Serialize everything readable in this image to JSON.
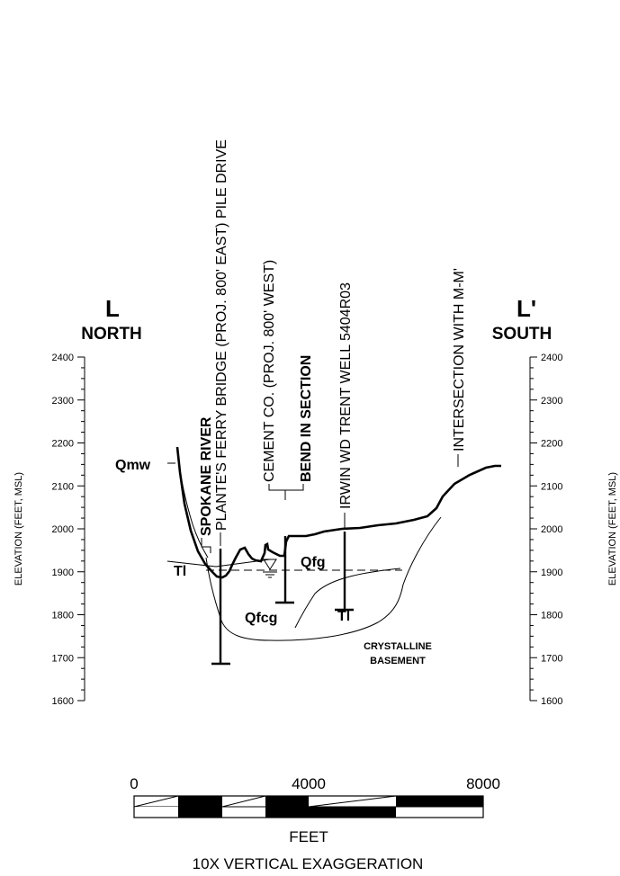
{
  "section": {
    "left_end": "L",
    "left_direction": "NORTH",
    "right_end": "L'",
    "right_direction": "SOUTH"
  },
  "elevation_axis": {
    "label": "ELEVATION (FEET, MSL)",
    "ticks": [
      "2400",
      "2300",
      "2200",
      "2100",
      "2000",
      "1900",
      "1800",
      "1700",
      "1600"
    ]
  },
  "annotations": {
    "spokane_river": "SPOKANE RIVER",
    "plantes_ferry": "PLANTE'S FERRY BRIDGE (PROJ. 800' EAST) PILE DRIVE",
    "cement_co": "CEMENT CO. (PROJ. 800' WEST)",
    "bend": "BEND IN SECTION",
    "irwin": "IRWIN WD TRENT WELL  5404R03",
    "intersection": "INTERSECTION WITH M-M'"
  },
  "units": {
    "qmw": "Qmw",
    "tl_left": "Tl",
    "tl_right": "Tl",
    "qfg": "Qfg",
    "qfcg": "Qfcg",
    "crystalline_1": "CRYSTALLINE",
    "crystalline_2": "BASEMENT"
  },
  "scale_bar": {
    "ticks": [
      "0",
      "4000",
      "8000"
    ],
    "unit": "FEET",
    "note": "10X VERTICAL EXAGGERATION"
  }
}
